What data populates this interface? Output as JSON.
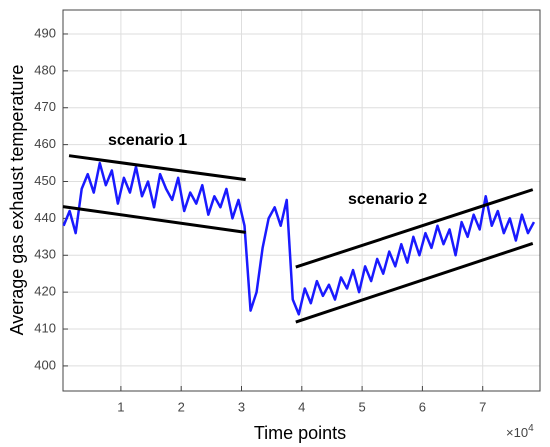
{
  "chart_data": {
    "type": "line",
    "x_label": "Time points",
    "y_label": "Average gas exhaust temperature",
    "x_scale_label": {
      "base": "×10",
      "exponent": "4"
    },
    "x": [
      0.05,
      0.15,
      0.25,
      0.35,
      0.45,
      0.55,
      0.65,
      0.75,
      0.85,
      0.95,
      1.05,
      1.15,
      1.25,
      1.35,
      1.45,
      1.55,
      1.65,
      1.75,
      1.85,
      1.95,
      2.05,
      2.15,
      2.25,
      2.35,
      2.45,
      2.55,
      2.65,
      2.75,
      2.85,
      2.95,
      3.05,
      3.15,
      3.25,
      3.35,
      3.45,
      3.55,
      3.65,
      3.75,
      3.85,
      3.95,
      4.05,
      4.15,
      4.25,
      4.35,
      4.45,
      4.55,
      4.65,
      4.75,
      4.85,
      4.95,
      5.05,
      5.15,
      5.25,
      5.35,
      5.45,
      5.55,
      5.65,
      5.75,
      5.85,
      5.95,
      6.05,
      6.15,
      6.25,
      6.35,
      6.45,
      6.55,
      6.65,
      6.75,
      6.85,
      6.95,
      7.05,
      7.15,
      7.25,
      7.35,
      7.45,
      7.55,
      7.65,
      7.75,
      7.85
    ],
    "series": [
      {
        "name": "Average gas exhaust temperature",
        "color": "#1a1aff",
        "values": [
          438,
          442,
          436,
          448,
          452,
          447,
          455,
          449,
          453,
          444,
          451,
          447,
          454,
          446,
          450,
          443,
          452,
          448,
          445,
          451,
          442,
          447,
          444,
          449,
          441,
          446,
          443,
          448,
          440,
          445,
          438,
          415,
          420,
          432,
          440,
          443,
          438,
          445,
          418,
          414,
          421,
          417,
          423,
          419,
          422,
          418,
          424,
          421,
          426,
          420,
          427,
          423,
          429,
          425,
          431,
          427,
          433,
          428,
          435,
          430,
          436,
          432,
          438,
          433,
          437,
          430,
          439,
          435,
          441,
          437,
          446,
          438,
          442,
          436,
          440,
          434,
          441,
          436,
          439
        ]
      }
    ],
    "trend_lines": [
      {
        "label": "scenario 1",
        "upper": {
          "x": [
            0.14,
            3.07
          ],
          "y": [
            457.0,
            450.5
          ]
        },
        "lower": {
          "x": [
            0.04,
            3.07
          ],
          "y": [
            443.2,
            436.2
          ]
        }
      },
      {
        "label": "scenario 2",
        "upper": {
          "x": [
            3.9,
            7.83
          ],
          "y": [
            426.8,
            447.8
          ]
        },
        "lower": {
          "x": [
            3.9,
            7.83
          ],
          "y": [
            411.9,
            433.2
          ]
        }
      }
    ],
    "xlim": [
      0.04,
      7.95
    ],
    "ylim": [
      393.2,
      496.5
    ],
    "xticks": [
      1,
      2,
      3,
      4,
      5,
      6,
      7
    ],
    "yticks": [
      400,
      410,
      420,
      430,
      440,
      450,
      460,
      470,
      480,
      490
    ],
    "grid": true
  }
}
